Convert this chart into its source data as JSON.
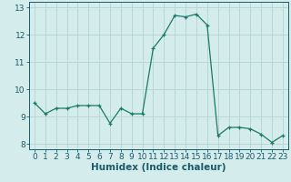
{
  "xlabel": "Humidex (Indice chaleur)",
  "ylabel": "",
  "background_color": "#d4ecec",
  "grid_color": "#b8d8d8",
  "line_color": "#1a7a6a",
  "marker_color": "#1a7a6a",
  "x": [
    0,
    1,
    2,
    3,
    4,
    5,
    6,
    7,
    8,
    9,
    10,
    11,
    12,
    13,
    14,
    15,
    16,
    17,
    18,
    19,
    20,
    21,
    22,
    23
  ],
  "y": [
    9.5,
    9.1,
    9.3,
    9.3,
    9.4,
    9.4,
    9.4,
    8.75,
    9.3,
    9.1,
    9.1,
    11.5,
    12.0,
    12.7,
    12.65,
    12.75,
    12.35,
    8.3,
    8.6,
    8.6,
    8.55,
    8.35,
    8.05,
    8.3
  ],
  "xlim": [
    -0.5,
    23.5
  ],
  "ylim": [
    7.8,
    13.2
  ],
  "yticks": [
    8,
    9,
    10,
    11,
    12,
    13
  ],
  "xticks": [
    0,
    1,
    2,
    3,
    4,
    5,
    6,
    7,
    8,
    9,
    10,
    11,
    12,
    13,
    14,
    15,
    16,
    17,
    18,
    19,
    20,
    21,
    22,
    23
  ],
  "font_color": "#1a5a6a",
  "tick_fontsize": 6.5,
  "label_fontsize": 7.5
}
